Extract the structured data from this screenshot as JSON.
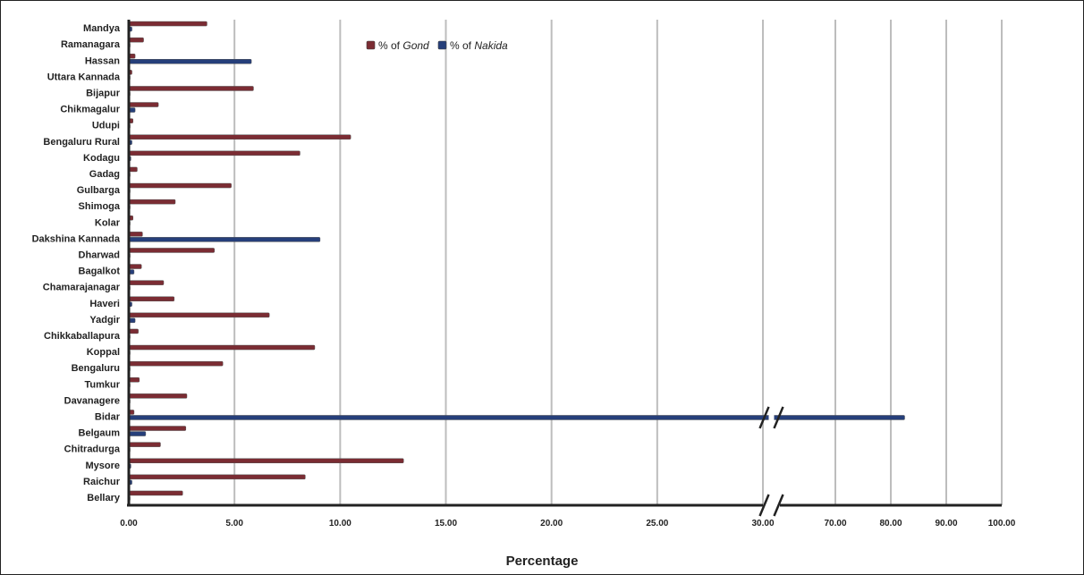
{
  "chart_data": {
    "type": "bar",
    "orientation": "horizontal",
    "categories": [
      "Mandya",
      "Ramanagara",
      "Hassan",
      "Uttara Kannada",
      "Bijapur",
      "Chikmagalur",
      "Udupi",
      "Bengaluru Rural",
      "Kodagu",
      "Gadag",
      "Gulbarga",
      "Shimoga",
      "Kolar",
      "Dakshina Kannada",
      "Dharwad",
      "Bagalkot",
      "Chamarajanagar",
      "Haveri",
      "Yadgir",
      "Chikkaballapura",
      "Koppal",
      "Bengaluru",
      "Tumkur",
      "Davanagere",
      "Bidar",
      "Belgaum",
      "Chitradurga",
      "Mysore",
      "Raichur",
      "Bellary"
    ],
    "series": [
      {
        "name": "% of Gond",
        "label_prefix": "% of ",
        "label_emph": "Gond",
        "color": "#7B2C33",
        "values": [
          3.7,
          0.7,
          0.3,
          0.15,
          5.9,
          1.4,
          0.2,
          10.5,
          8.1,
          0.4,
          4.85,
          2.2,
          0.2,
          0.65,
          4.05,
          0.6,
          1.65,
          2.15,
          6.65,
          0.45,
          8.8,
          4.45,
          0.5,
          2.75,
          0.25,
          2.7,
          1.5,
          13.0,
          8.35,
          2.55
        ]
      },
      {
        "name": "% of Nakida",
        "label_prefix": "% of ",
        "label_emph": "Nakida",
        "color": "#263F7A",
        "values": [
          0.15,
          0.05,
          5.8,
          0.05,
          0.05,
          0.3,
          0.05,
          0.15,
          0.1,
          0.05,
          0.05,
          0.05,
          0.05,
          9.05,
          0.05,
          0.25,
          0.05,
          0.15,
          0.3,
          0.05,
          0.05,
          0.05,
          0.05,
          0.05,
          82.5,
          0.8,
          0.05,
          0.1,
          0.15,
          0.05
        ]
      }
    ],
    "xlabel": "Percentage",
    "x_ticks": [
      "0.00",
      "5.00",
      "10.00",
      "15.00",
      "20.00",
      "25.00",
      "30.00",
      "70.00",
      "80.00",
      "90.00",
      "100.00"
    ],
    "x_break": [
      30,
      60
    ],
    "xlim": [
      0,
      100
    ],
    "grid": true,
    "legend_position": "top-center"
  }
}
